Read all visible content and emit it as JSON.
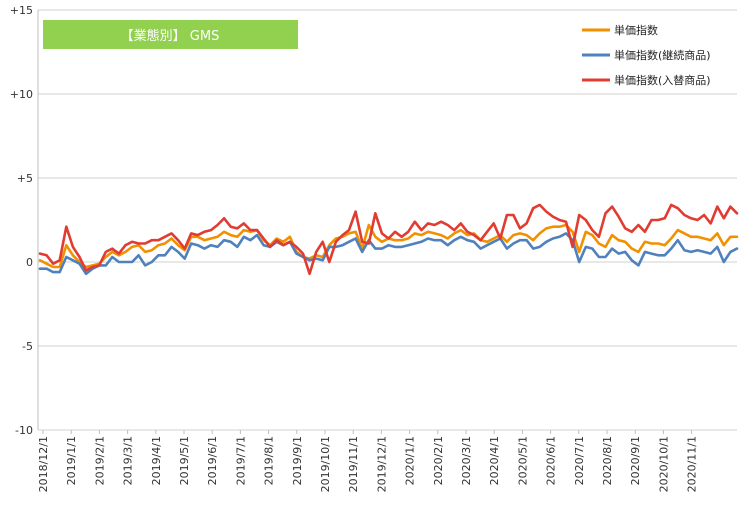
{
  "chart_data": {
    "type": "line",
    "title": "",
    "badge": "【業態別】 GMS",
    "ylim": [
      -10,
      15
    ],
    "y_ticks": [
      {
        "value": 15,
        "label": "+15"
      },
      {
        "value": 10,
        "label": "+10"
      },
      {
        "value": 5,
        "label": "+5"
      },
      {
        "value": 0,
        "label": "0"
      },
      {
        "value": -5,
        "label": "-5"
      },
      {
        "value": -10,
        "label": "-10"
      }
    ],
    "x_tick_labels": [
      "2018/12/1",
      "2019/1/1",
      "2019/2/1",
      "2019/3/1",
      "2019/4/1",
      "2019/5/1",
      "2019/6/1",
      "2019/7/1",
      "2019/8/1",
      "2019/9/1",
      "2019/10/1",
      "2019/11/1",
      "2019/12/1",
      "2020/1/1",
      "2020/2/1",
      "2020/3/1",
      "2020/4/1",
      "2020/5/1",
      "2020/6/1",
      "2020/7/1",
      "2020/8/1",
      "2020/9/1",
      "2020/10/1",
      "2020/11/1"
    ],
    "grid": "horizontal",
    "legend_position": "top-right",
    "series": [
      {
        "name": "単価指数",
        "color": "#F29100",
        "values": [
          0.1,
          -0.1,
          -0.3,
          -0.3,
          1.0,
          0.4,
          0.0,
          -0.3,
          -0.2,
          -0.1,
          0.3,
          0.6,
          0.4,
          0.6,
          0.9,
          1.0,
          0.6,
          0.7,
          1.0,
          1.1,
          1.4,
          1.0,
          0.7,
          1.5,
          1.5,
          1.3,
          1.4,
          1.5,
          1.8,
          1.6,
          1.5,
          1.9,
          1.8,
          1.9,
          1.3,
          1.0,
          1.4,
          1.2,
          1.5,
          0.6,
          0.3,
          0.2,
          0.4,
          0.3,
          1.0,
          1.4,
          1.5,
          1.7,
          1.8,
          0.8,
          2.2,
          1.5,
          1.2,
          1.4,
          1.3,
          1.3,
          1.4,
          1.7,
          1.6,
          1.8,
          1.7,
          1.6,
          1.4,
          1.7,
          1.9,
          1.6,
          1.7,
          1.3,
          1.2,
          1.4,
          1.6,
          1.2,
          1.6,
          1.7,
          1.6,
          1.3,
          1.7,
          2.0,
          2.1,
          2.1,
          2.2,
          1.8,
          0.6,
          1.8,
          1.6,
          1.1,
          0.9,
          1.6,
          1.3,
          1.2,
          0.8,
          0.6,
          1.2,
          1.1,
          1.1,
          1.0,
          1.4,
          1.9,
          1.7,
          1.5,
          1.5,
          1.4,
          1.3,
          1.7,
          1.0,
          1.5,
          1.5
        ]
      },
      {
        "name": "単価指数(継続商品)",
        "color": "#4F81BD",
        "values": [
          -0.4,
          -0.4,
          -0.6,
          -0.6,
          0.3,
          0.1,
          -0.1,
          -0.7,
          -0.4,
          -0.2,
          -0.2,
          0.3,
          0.0,
          0.0,
          0.0,
          0.4,
          -0.2,
          0.0,
          0.4,
          0.4,
          0.9,
          0.6,
          0.2,
          1.1,
          1.0,
          0.8,
          1.0,
          0.9,
          1.3,
          1.2,
          0.9,
          1.5,
          1.3,
          1.6,
          1.0,
          0.9,
          1.2,
          1.0,
          1.2,
          0.5,
          0.3,
          0.1,
          0.2,
          0.1,
          0.9,
          0.9,
          1.0,
          1.2,
          1.4,
          0.6,
          1.3,
          0.8,
          0.8,
          1.0,
          0.9,
          0.9,
          1.0,
          1.1,
          1.2,
          1.4,
          1.3,
          1.3,
          1.0,
          1.3,
          1.5,
          1.3,
          1.2,
          0.8,
          1.0,
          1.2,
          1.4,
          0.8,
          1.1,
          1.3,
          1.3,
          0.8,
          0.9,
          1.2,
          1.4,
          1.5,
          1.7,
          1.3,
          0.0,
          0.9,
          0.8,
          0.3,
          0.3,
          0.8,
          0.5,
          0.6,
          0.1,
          -0.2,
          0.6,
          0.5,
          0.4,
          0.4,
          0.8,
          1.3,
          0.7,
          0.6,
          0.7,
          0.6,
          0.5,
          0.9,
          0.0,
          0.6,
          0.8
        ]
      },
      {
        "name": "単価指数(入替商品)",
        "color": "#E03C31",
        "values": [
          0.5,
          0.4,
          -0.1,
          0.1,
          2.1,
          0.9,
          0.3,
          -0.5,
          -0.3,
          -0.2,
          0.6,
          0.8,
          0.5,
          1.0,
          1.2,
          1.1,
          1.1,
          1.3,
          1.3,
          1.5,
          1.7,
          1.3,
          0.8,
          1.7,
          1.6,
          1.8,
          1.9,
          2.2,
          2.6,
          2.1,
          2.0,
          2.3,
          1.9,
          1.9,
          1.4,
          0.9,
          1.3,
          1.0,
          1.2,
          0.9,
          0.5,
          -0.7,
          0.6,
          1.2,
          0.0,
          1.2,
          1.6,
          1.9,
          3.0,
          1.2,
          1.1,
          2.9,
          1.7,
          1.4,
          1.8,
          1.5,
          1.8,
          2.4,
          1.9,
          2.3,
          2.2,
          2.4,
          2.2,
          1.9,
          2.3,
          1.8,
          1.6,
          1.3,
          1.8,
          2.3,
          1.4,
          2.8,
          2.8,
          2.0,
          2.3,
          3.2,
          3.4,
          3.0,
          2.7,
          2.5,
          2.4,
          0.9,
          2.8,
          2.5,
          1.9,
          1.5,
          2.9,
          3.3,
          2.7,
          2.0,
          1.8,
          2.2,
          1.8,
          2.5,
          2.5,
          2.6,
          3.4,
          3.2,
          2.8,
          2.6,
          2.5,
          2.8,
          2.3,
          3.3,
          2.6,
          3.3,
          2.9
        ]
      }
    ]
  }
}
